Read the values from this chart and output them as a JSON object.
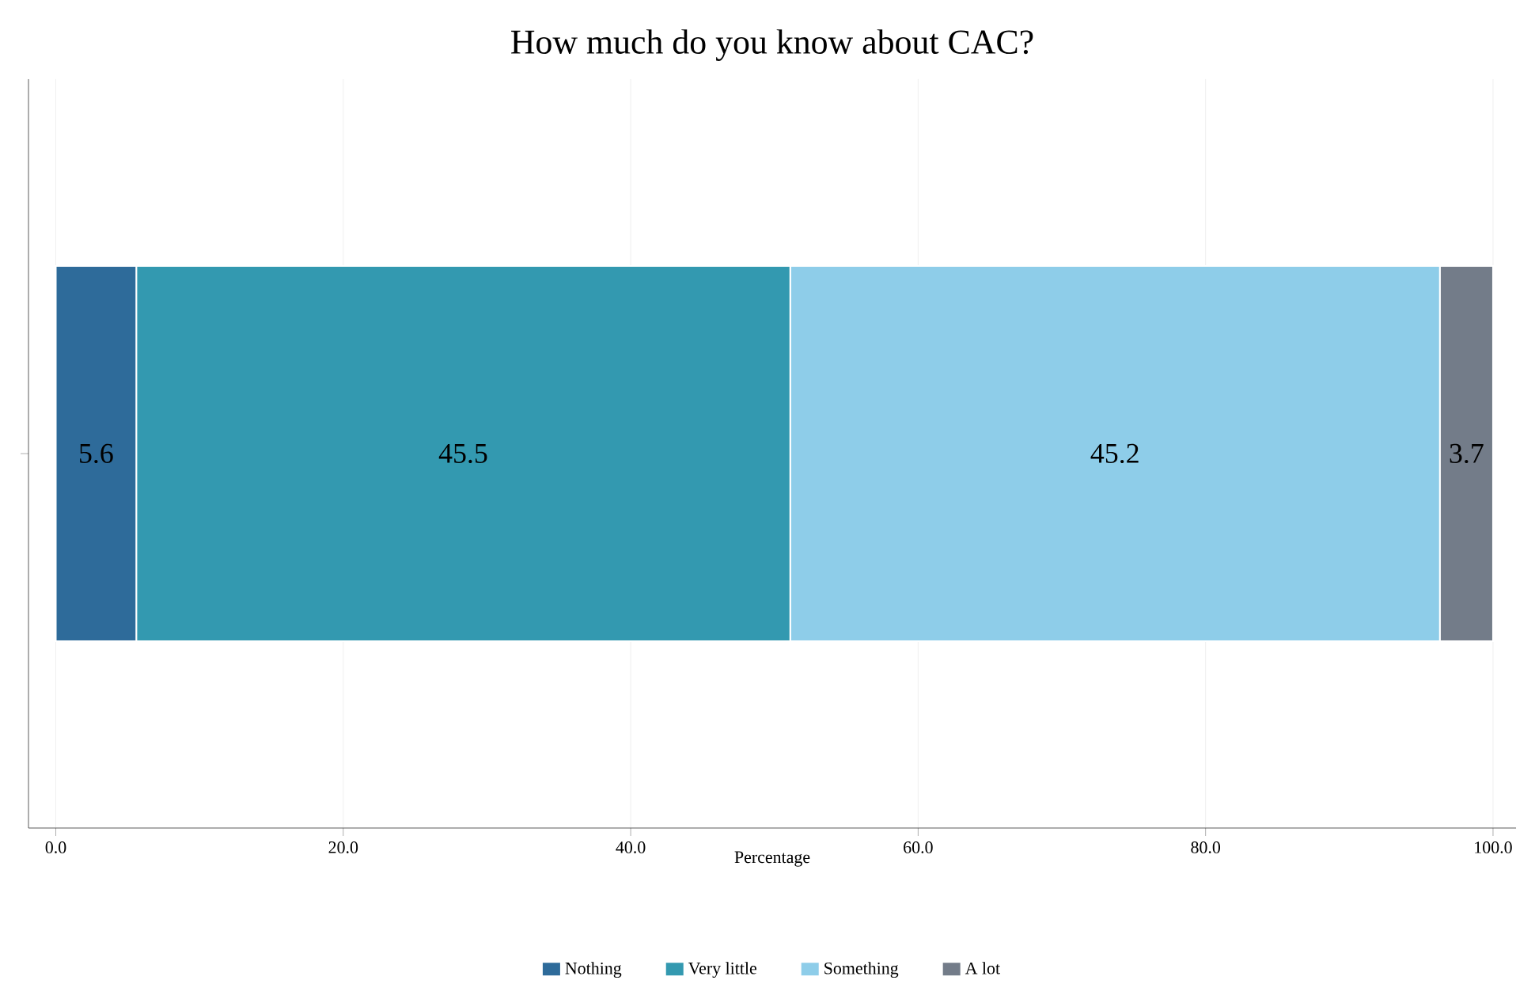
{
  "chart_data": {
    "type": "bar",
    "orientation": "horizontal",
    "stacked": true,
    "title": "How much do you know about CAC?",
    "xlabel": "Percentage",
    "categories": [
      null
    ],
    "series": [
      {
        "name": "Nothing",
        "color": "#2e6b9a",
        "values": [
          5.6
        ]
      },
      {
        "name": "Very little",
        "color": "#3399b0",
        "values": [
          45.5
        ]
      },
      {
        "name": "Something",
        "color": "#8ecde9",
        "values": [
          45.2
        ]
      },
      {
        "name": "A lot",
        "color": "#737c89",
        "values": [
          3.7
        ]
      }
    ],
    "xlim": [
      -1.9,
      101.6
    ],
    "xticks": [
      {
        "value": 0,
        "label": "0.0"
      },
      {
        "value": 20,
        "label": "20.0"
      },
      {
        "value": 40,
        "label": "40.0"
      },
      {
        "value": 60,
        "label": "60.0"
      },
      {
        "value": 80,
        "label": "80.0"
      },
      {
        "value": 100,
        "label": "100.0"
      }
    ],
    "grid": "x",
    "legend": "bottom",
    "data_labels": true
  }
}
